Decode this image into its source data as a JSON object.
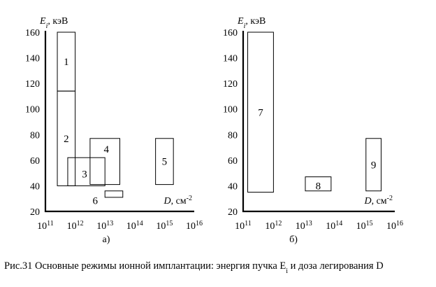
{
  "caption": {
    "prefix": "Рис.31 Основные режимы ионной имплантации: энергия пучка E",
    "sub": "i",
    "suffix": " и доза легирования D"
  },
  "panels": [
    {
      "id": "a",
      "label": "а)",
      "y_axis": {
        "symbol": "E",
        "sub": "i",
        "unit": ", кэВ",
        "range": [
          20,
          160
        ],
        "ticks": [
          "20",
          "40",
          "60",
          "80",
          "100",
          "120",
          "140",
          "160"
        ]
      },
      "x_axis": {
        "symbol": "D",
        "unit": ", см",
        "exp": "-2",
        "exponent_range": [
          11,
          16
        ],
        "base": "10",
        "ticks": [
          "11",
          "12",
          "13",
          "14",
          "15",
          "16"
        ]
      },
      "regions": [
        {
          "label": "1",
          "log_d": [
            11.4,
            12.0
          ],
          "energy": [
            114,
            160
          ]
        },
        {
          "label": "2",
          "log_d": [
            11.4,
            12.0
          ],
          "energy": [
            40,
            114
          ]
        },
        {
          "label": "3",
          "log_d": [
            11.75,
            13.0
          ],
          "energy": [
            40,
            62
          ]
        },
        {
          "label": "4",
          "log_d": [
            12.5,
            13.5
          ],
          "energy": [
            41,
            77
          ]
        },
        {
          "label": "5",
          "log_d": [
            14.7,
            15.3
          ],
          "energy": [
            41,
            77
          ]
        },
        {
          "label": "6",
          "log_d": [
            13.0,
            13.6
          ],
          "energy": [
            31,
            36
          ]
        }
      ]
    },
    {
      "id": "b",
      "label": "б)",
      "y_axis": {
        "symbol": "E",
        "sub": "i",
        "unit": ", кэВ",
        "range": [
          20,
          160
        ],
        "ticks": [
          "20",
          "40",
          "60",
          "80",
          "100",
          "120",
          "140",
          "160"
        ]
      },
      "x_axis": {
        "symbol": "D",
        "unit": ", см",
        "exp": "-2",
        "exponent_range": [
          11,
          16
        ],
        "base": "10",
        "ticks": [
          "11",
          "12",
          "13",
          "14",
          "15",
          "16"
        ]
      },
      "regions": [
        {
          "label": "7",
          "log_d": [
            11.15,
            12.0
          ],
          "energy": [
            35,
            160
          ]
        },
        {
          "label": "8",
          "log_d": [
            13.05,
            13.9
          ],
          "energy": [
            36,
            47
          ]
        },
        {
          "label": "9",
          "log_d": [
            15.05,
            15.55
          ],
          "energy": [
            36,
            77
          ]
        }
      ]
    }
  ]
}
